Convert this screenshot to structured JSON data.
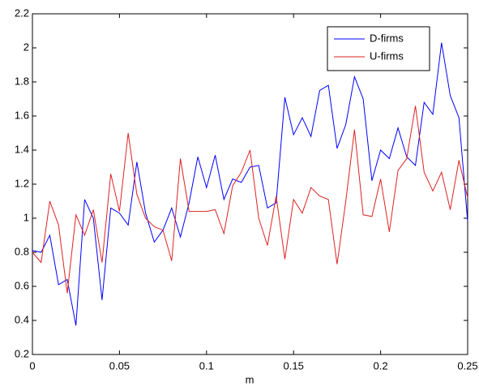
{
  "chart_data": {
    "type": "line",
    "xlabel": "m",
    "x": [
      0,
      0.005,
      0.01,
      0.015,
      0.02,
      0.025,
      0.03,
      0.035,
      0.04,
      0.045,
      0.05,
      0.055,
      0.06,
      0.065,
      0.07,
      0.075,
      0.08,
      0.085,
      0.09,
      0.095,
      0.1,
      0.105,
      0.11,
      0.115,
      0.12,
      0.125,
      0.13,
      0.135,
      0.14,
      0.145,
      0.15,
      0.155,
      0.16,
      0.165,
      0.17,
      0.175,
      0.18,
      0.185,
      0.19,
      0.195,
      0.2,
      0.205,
      0.21,
      0.215,
      0.22,
      0.225,
      0.23,
      0.235,
      0.24,
      0.245,
      0.25
    ],
    "series": [
      {
        "name": "D-firms",
        "color": "#0000ff",
        "values": [
          0.81,
          0.8,
          0.9,
          0.61,
          0.64,
          0.37,
          1.11,
          1.0,
          0.52,
          1.06,
          1.03,
          0.96,
          1.33,
          1.03,
          0.86,
          0.93,
          1.06,
          0.89,
          1.09,
          1.36,
          1.18,
          1.37,
          1.11,
          1.23,
          1.21,
          1.3,
          1.31,
          1.06,
          1.09,
          1.71,
          1.49,
          1.59,
          1.48,
          1.75,
          1.78,
          1.41,
          1.55,
          1.83,
          1.7,
          1.22,
          1.4,
          1.35,
          1.53,
          1.36,
          1.31,
          1.68,
          1.61,
          2.03,
          1.72,
          1.59,
          0.98
        ]
      },
      {
        "name": "U-firms",
        "color": "#dd2222",
        "values": [
          0.8,
          0.74,
          1.1,
          0.96,
          0.56,
          1.02,
          0.9,
          1.05,
          0.74,
          1.26,
          1.04,
          1.5,
          1.14,
          1.0,
          0.95,
          0.93,
          0.75,
          1.35,
          1.04,
          1.04,
          1.04,
          1.05,
          0.91,
          1.19,
          1.27,
          1.4,
          1.0,
          0.84,
          1.13,
          0.76,
          1.11,
          1.03,
          1.18,
          1.13,
          1.11,
          0.73,
          1.1,
          1.52,
          1.02,
          1.01,
          1.23,
          0.92,
          1.28,
          1.35,
          1.66,
          1.27,
          1.16,
          1.27,
          1.05,
          1.34,
          1.12
        ]
      }
    ],
    "xlim": [
      0,
      0.25
    ],
    "xticks": [
      0,
      0.05,
      0.1,
      0.15,
      0.2,
      0.25
    ],
    "ylim": [
      0.2,
      2.2
    ],
    "yticks": [
      0.2,
      0.4,
      0.6,
      0.8,
      1,
      1.2,
      1.4,
      1.6,
      1.8,
      2,
      2.2
    ],
    "grid": false,
    "legend": "northeast"
  }
}
